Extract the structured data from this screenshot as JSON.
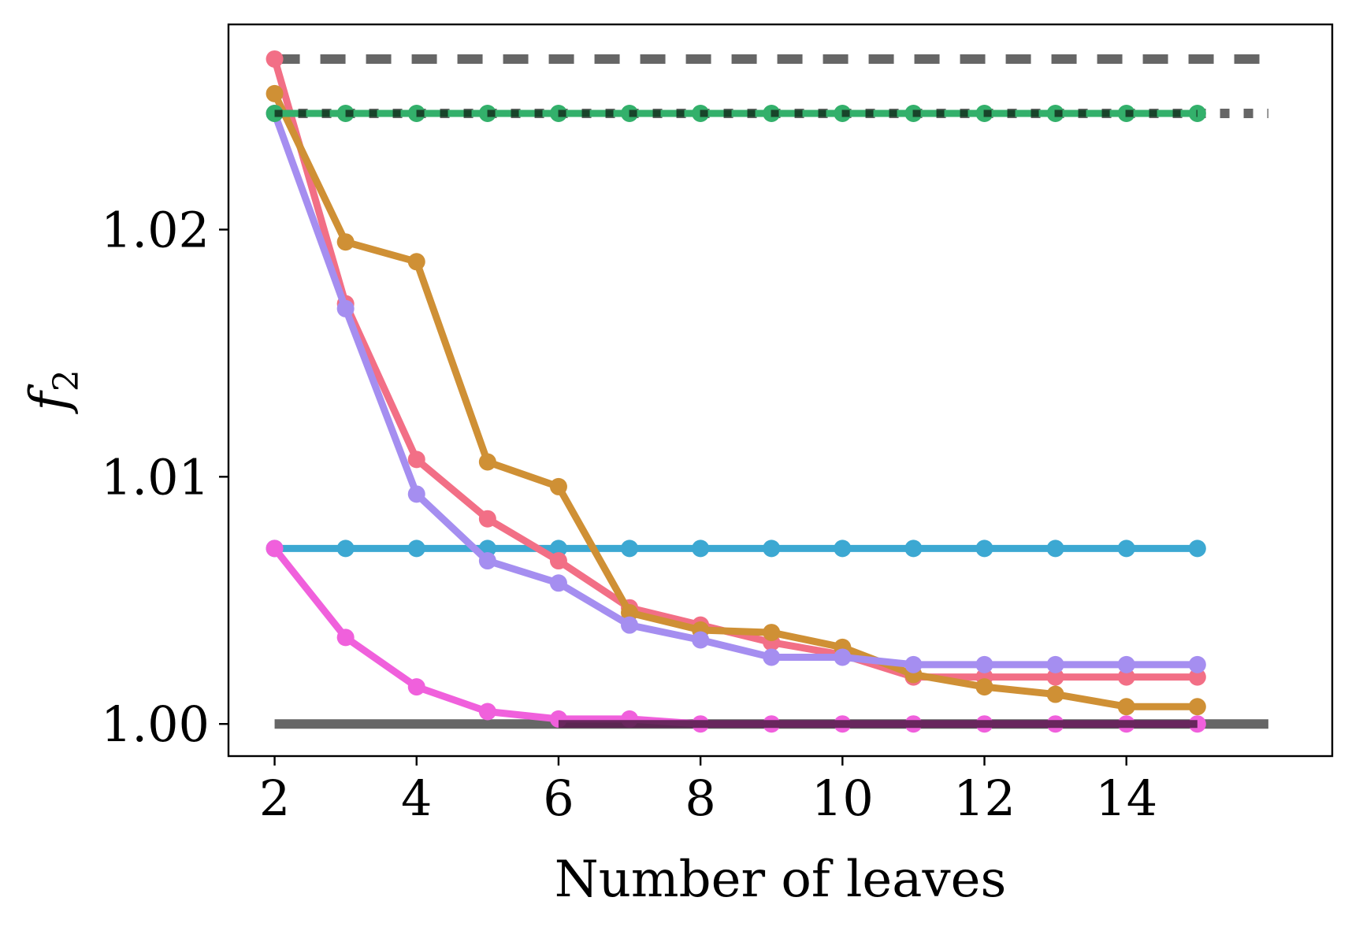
{
  "chart_data": {
    "type": "line",
    "title": "",
    "xlabel": "Number of leaves",
    "ylabel": "f",
    "ylabel_subscript": "2",
    "xlim": [
      1.35,
      16.9
    ],
    "ylim": [
      0.9987,
      1.0283
    ],
    "xticks": [
      2,
      4,
      6,
      8,
      10,
      12,
      14
    ],
    "xtick_labels": [
      "2",
      "4",
      "6",
      "8",
      "10",
      "12",
      "14"
    ],
    "yticks": [
      1.0,
      1.01,
      1.02
    ],
    "ytick_labels": [
      "1.00",
      "1.01",
      "1.02"
    ],
    "grid": false,
    "legend": "none",
    "x": [
      2,
      3,
      4,
      5,
      6,
      7,
      8,
      9,
      10,
      11,
      12,
      13,
      14,
      15
    ],
    "series": [
      {
        "color": "#3ca8d2",
        "values": [
          1.0071,
          1.0071,
          1.0071,
          1.0071,
          1.0071,
          1.0071,
          1.0071,
          1.0071,
          1.0071,
          1.0071,
          1.0071,
          1.0071,
          1.0071,
          1.0071
        ]
      },
      {
        "color": "#f26f86",
        "values": [
          1.0269,
          1.017,
          1.0107,
          1.0083,
          1.0066,
          1.0047,
          1.004,
          1.0033,
          1.0028,
          1.0019,
          1.0019,
          1.0019,
          1.0019,
          1.0019
        ]
      },
      {
        "color": "#cf9035",
        "values": [
          1.0255,
          1.0195,
          1.0187,
          1.0106,
          1.0096,
          1.0045,
          1.0038,
          1.0037,
          1.0031,
          1.002,
          1.0015,
          1.0012,
          1.0007,
          1.0007
        ]
      },
      {
        "color": "#a58ef0",
        "values": [
          1.0247,
          1.0168,
          1.0093,
          1.0066,
          1.0057,
          1.004,
          1.0034,
          1.0027,
          1.0027,
          1.0024,
          1.0024,
          1.0024,
          1.0024,
          1.0024
        ]
      },
      {
        "color": "#f060dc",
        "values": [
          1.0071,
          1.0035,
          1.0015,
          1.0005,
          1.0002,
          1.0002,
          1.0,
          1.0,
          1.0,
          1.0,
          1.0,
          1.0,
          1.0,
          1.0
        ]
      },
      {
        "color": "#33b06b",
        "values": [
          1.0247,
          1.0247,
          1.0247,
          1.0247,
          1.0247,
          1.0247,
          1.0247,
          1.0247,
          1.0247,
          1.0247,
          1.0247,
          1.0247,
          1.0247,
          1.0247
        ]
      }
    ],
    "reference_lines": [
      {
        "y": 1.0269,
        "x_range": [
          2,
          16
        ],
        "style": "dashed",
        "color": "#666666"
      },
      {
        "y": 1.0247,
        "x_range": [
          2,
          16
        ],
        "style": "dotted",
        "color": "#666666"
      },
      {
        "y": 1.0,
        "x_range": [
          2,
          16
        ],
        "style": "solid",
        "color": "#666666"
      }
    ]
  }
}
